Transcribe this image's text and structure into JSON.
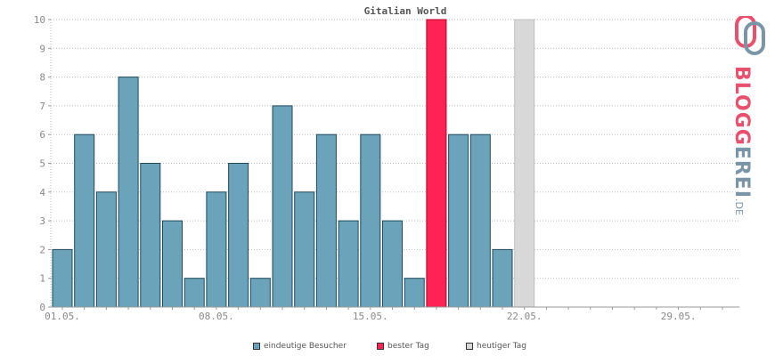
{
  "chart_data": {
    "type": "bar",
    "title": "Gitalian World",
    "xlabel": "",
    "ylabel": "",
    "ylim": [
      0,
      10
    ],
    "yticks": [
      0,
      1,
      2,
      3,
      4,
      5,
      6,
      7,
      8,
      9,
      10
    ],
    "x_ticks": [
      "01.05.",
      "08.05.",
      "15.05.",
      "22.05.",
      "29.05."
    ],
    "categories": [
      "01.05.",
      "02.05.",
      "03.05.",
      "04.05.",
      "05.05.",
      "06.05.",
      "07.05.",
      "08.05.",
      "09.05.",
      "10.05.",
      "11.05.",
      "12.05.",
      "13.05.",
      "14.05.",
      "15.05.",
      "16.05.",
      "17.05.",
      "18.05.",
      "19.05.",
      "20.05.",
      "21.05.",
      "22.05.",
      "23.05.",
      "24.05.",
      "25.05.",
      "26.05.",
      "27.05.",
      "28.05.",
      "29.05.",
      "30.05.",
      "31.05."
    ],
    "series": [
      {
        "name": "eindeutige Besucher",
        "values": [
          2,
          6,
          4,
          8,
          5,
          3,
          1,
          4,
          5,
          1,
          7,
          4,
          6,
          3,
          6,
          3,
          1,
          null,
          6,
          6,
          2,
          null,
          null,
          null,
          null,
          null,
          null,
          null,
          null,
          null,
          null
        ]
      },
      {
        "name": "bester Tag",
        "values": [
          null,
          null,
          null,
          null,
          null,
          null,
          null,
          null,
          null,
          null,
          null,
          null,
          null,
          null,
          null,
          null,
          null,
          10,
          null,
          null,
          null,
          null,
          null,
          null,
          null,
          null,
          null,
          null,
          null,
          null,
          null
        ]
      },
      {
        "name": "heutiger Tag",
        "values": [
          null,
          null,
          null,
          null,
          null,
          null,
          null,
          null,
          null,
          null,
          null,
          null,
          null,
          null,
          null,
          null,
          null,
          null,
          null,
          null,
          null,
          10,
          null,
          null,
          null,
          null,
          null,
          null,
          null,
          null,
          null
        ]
      }
    ],
    "grid": true,
    "legend_position": "bottom"
  },
  "colors": {
    "visitors": "#6aa3ba",
    "best_day": "#ff2255",
    "today": "#d8d8d8",
    "grid": "#bbbbbb",
    "axis": "#999999"
  },
  "legend": [
    {
      "label": "eindeutige Besucher",
      "color": "#6aa3ba"
    },
    {
      "label": "bester Tag",
      "color": "#ff2255"
    },
    {
      "label": "heutiger Tag",
      "color": "#d8d8d8"
    }
  ],
  "logo": {
    "name": "BLOGGEREI",
    "suffix": ".DE"
  }
}
